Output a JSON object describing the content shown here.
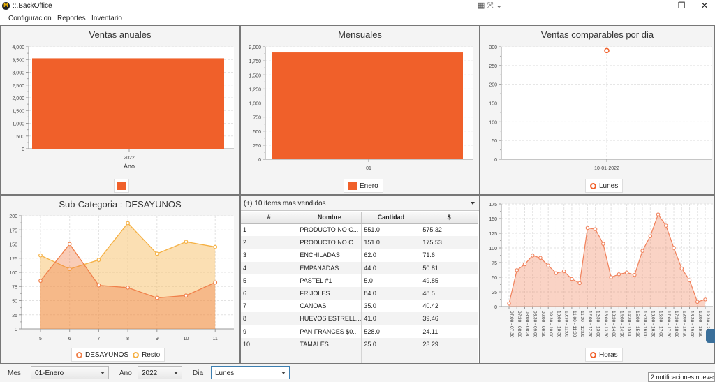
{
  "window": {
    "title": "::.BackOffice",
    "icon_label": "M",
    "extra_icons": "▦ ⤧ ⌄"
  },
  "menu": [
    "Configuracion",
    "Reportes",
    "Inventario"
  ],
  "charts": {
    "annual": {
      "title": "Ventas anuales",
      "xlabel": "Ano",
      "category": "2022",
      "y_ticks": [
        "4,000",
        "3,500",
        "3,000",
        "2,500",
        "2,000",
        "1,500",
        "1,000",
        "500",
        "0"
      ]
    },
    "monthly": {
      "title": "Mensuales",
      "category": "01",
      "legend": "Enero",
      "y_ticks": [
        "2,000",
        "1,750",
        "1,500",
        "1,250",
        "1,000",
        "750",
        "500",
        "250",
        "0"
      ]
    },
    "daily": {
      "title": "Ventas comparables por dia",
      "category": "10-01-2022",
      "legend": "Lunes",
      "y_ticks": [
        "300",
        "250",
        "200",
        "150",
        "100",
        "50",
        "0"
      ]
    },
    "subcat": {
      "title": "Sub-Categoria : DESAYUNOS",
      "x_ticks": [
        "5",
        "6",
        "7",
        "8",
        "9",
        "10",
        "11"
      ],
      "y_ticks": [
        "200",
        "175",
        "150",
        "125",
        "100",
        "75",
        "50",
        "25",
        "0"
      ],
      "legend": [
        "DESAYUNOS",
        "Resto"
      ]
    },
    "hours": {
      "legend": "Horas",
      "y_ticks": [
        "175",
        "150",
        "125",
        "100",
        "75",
        "50",
        "25",
        "0"
      ]
    }
  },
  "chart_data": [
    {
      "type": "bar",
      "title": "Ventas anuales",
      "xlabel": "Ano",
      "categories": [
        "2022"
      ],
      "values": [
        3550
      ],
      "ylim": [
        0,
        4000
      ],
      "color": "#f0602a"
    },
    {
      "type": "bar",
      "title": "Mensuales",
      "categories": [
        "01"
      ],
      "series": [
        {
          "name": "Enero",
          "values": [
            1900
          ]
        }
      ],
      "ylim": [
        0,
        2000
      ],
      "color": "#f0602a"
    },
    {
      "type": "scatter",
      "title": "Ventas comparables por dia",
      "categories": [
        "10-01-2022"
      ],
      "series": [
        {
          "name": "Lunes",
          "values": [
            290
          ]
        }
      ],
      "ylim": [
        0,
        300
      ],
      "color": "#f0602a"
    },
    {
      "type": "area",
      "title": "Sub-Categoria : DESAYUNOS",
      "x": [
        5,
        6,
        7,
        8,
        9,
        10,
        11
      ],
      "series": [
        {
          "name": "DESAYUNOS",
          "values": [
            85,
            150,
            77,
            73,
            55,
            59,
            82
          ],
          "color": "#f0804a"
        },
        {
          "name": "Resto",
          "values": [
            130,
            106,
            122,
            187,
            133,
            154,
            145
          ],
          "color": "#f5b042"
        }
      ],
      "ylim": [
        0,
        200
      ]
    },
    {
      "type": "area",
      "categories": [
        "07:00 - 07:30",
        "07:30 - 08:00",
        "08:00 - 08:30",
        "08:30 - 09:00",
        "09:00 - 09:30",
        "09:30 - 10:00",
        "10:00 - 10:30",
        "10:30 - 11:00",
        "11:00 - 11:30",
        "11:30 - 12:00",
        "12:00 - 12:30",
        "12:30 - 13:00",
        "13:00 - 13:30",
        "13:30 - 14:00",
        "14:00 - 14:30",
        "14:30 - 15:00",
        "15:00 - 15:30",
        "15:30 - 16:00",
        "16:00 - 16:30",
        "16:30 - 17:00",
        "17:00 - 17:30",
        "17:30 - 18:00",
        "18:00 - 18:30",
        "18:30 - 19:00",
        "19:00 - 19:30",
        "19:30 - 20:00"
      ],
      "series": [
        {
          "name": "Horas",
          "values": [
            5,
            62,
            72,
            87,
            83,
            70,
            57,
            60,
            47,
            40,
            134,
            132,
            107,
            50,
            55,
            58,
            54,
            95,
            120,
            157,
            138,
            100,
            65,
            45,
            8,
            12
          ]
        }
      ],
      "ylim": [
        0,
        175
      ],
      "color": "#f0805a"
    }
  ],
  "top_items": {
    "title": "(+) 10 items mas vendidos",
    "columns": [
      "#",
      "Nombre",
      "Cantidad",
      "$"
    ],
    "rows": [
      [
        "1",
        "PRODUCTO NO C...",
        "551.0",
        "575.32"
      ],
      [
        "2",
        "PRODUCTO NO C...",
        "151.0",
        "175.53"
      ],
      [
        "3",
        "ENCHILADAS",
        "62.0",
        "71.6"
      ],
      [
        "4",
        "EMPANADAS",
        "44.0",
        "50.81"
      ],
      [
        "5",
        "PASTEL #1",
        "5.0",
        "49.85"
      ],
      [
        "6",
        "FRIJOLES",
        "84.0",
        "48.5"
      ],
      [
        "7",
        "CANOAS",
        "35.0",
        "40.42"
      ],
      [
        "8",
        "HUEVOS ESTRELL...",
        "41.0",
        "39.46"
      ],
      [
        "9",
        "PAN FRANCES $0...",
        "528.0",
        "24.11"
      ],
      [
        "10",
        "TAMALES",
        "25.0",
        "23.29"
      ]
    ]
  },
  "filters": {
    "mes_label": "Mes",
    "mes_value": "01-Enero",
    "ano_label": "Ano",
    "ano_value": "2022",
    "dia_label": "Dia",
    "dia_value": "Lunes"
  },
  "notification": "2 notificaciones nuevas"
}
